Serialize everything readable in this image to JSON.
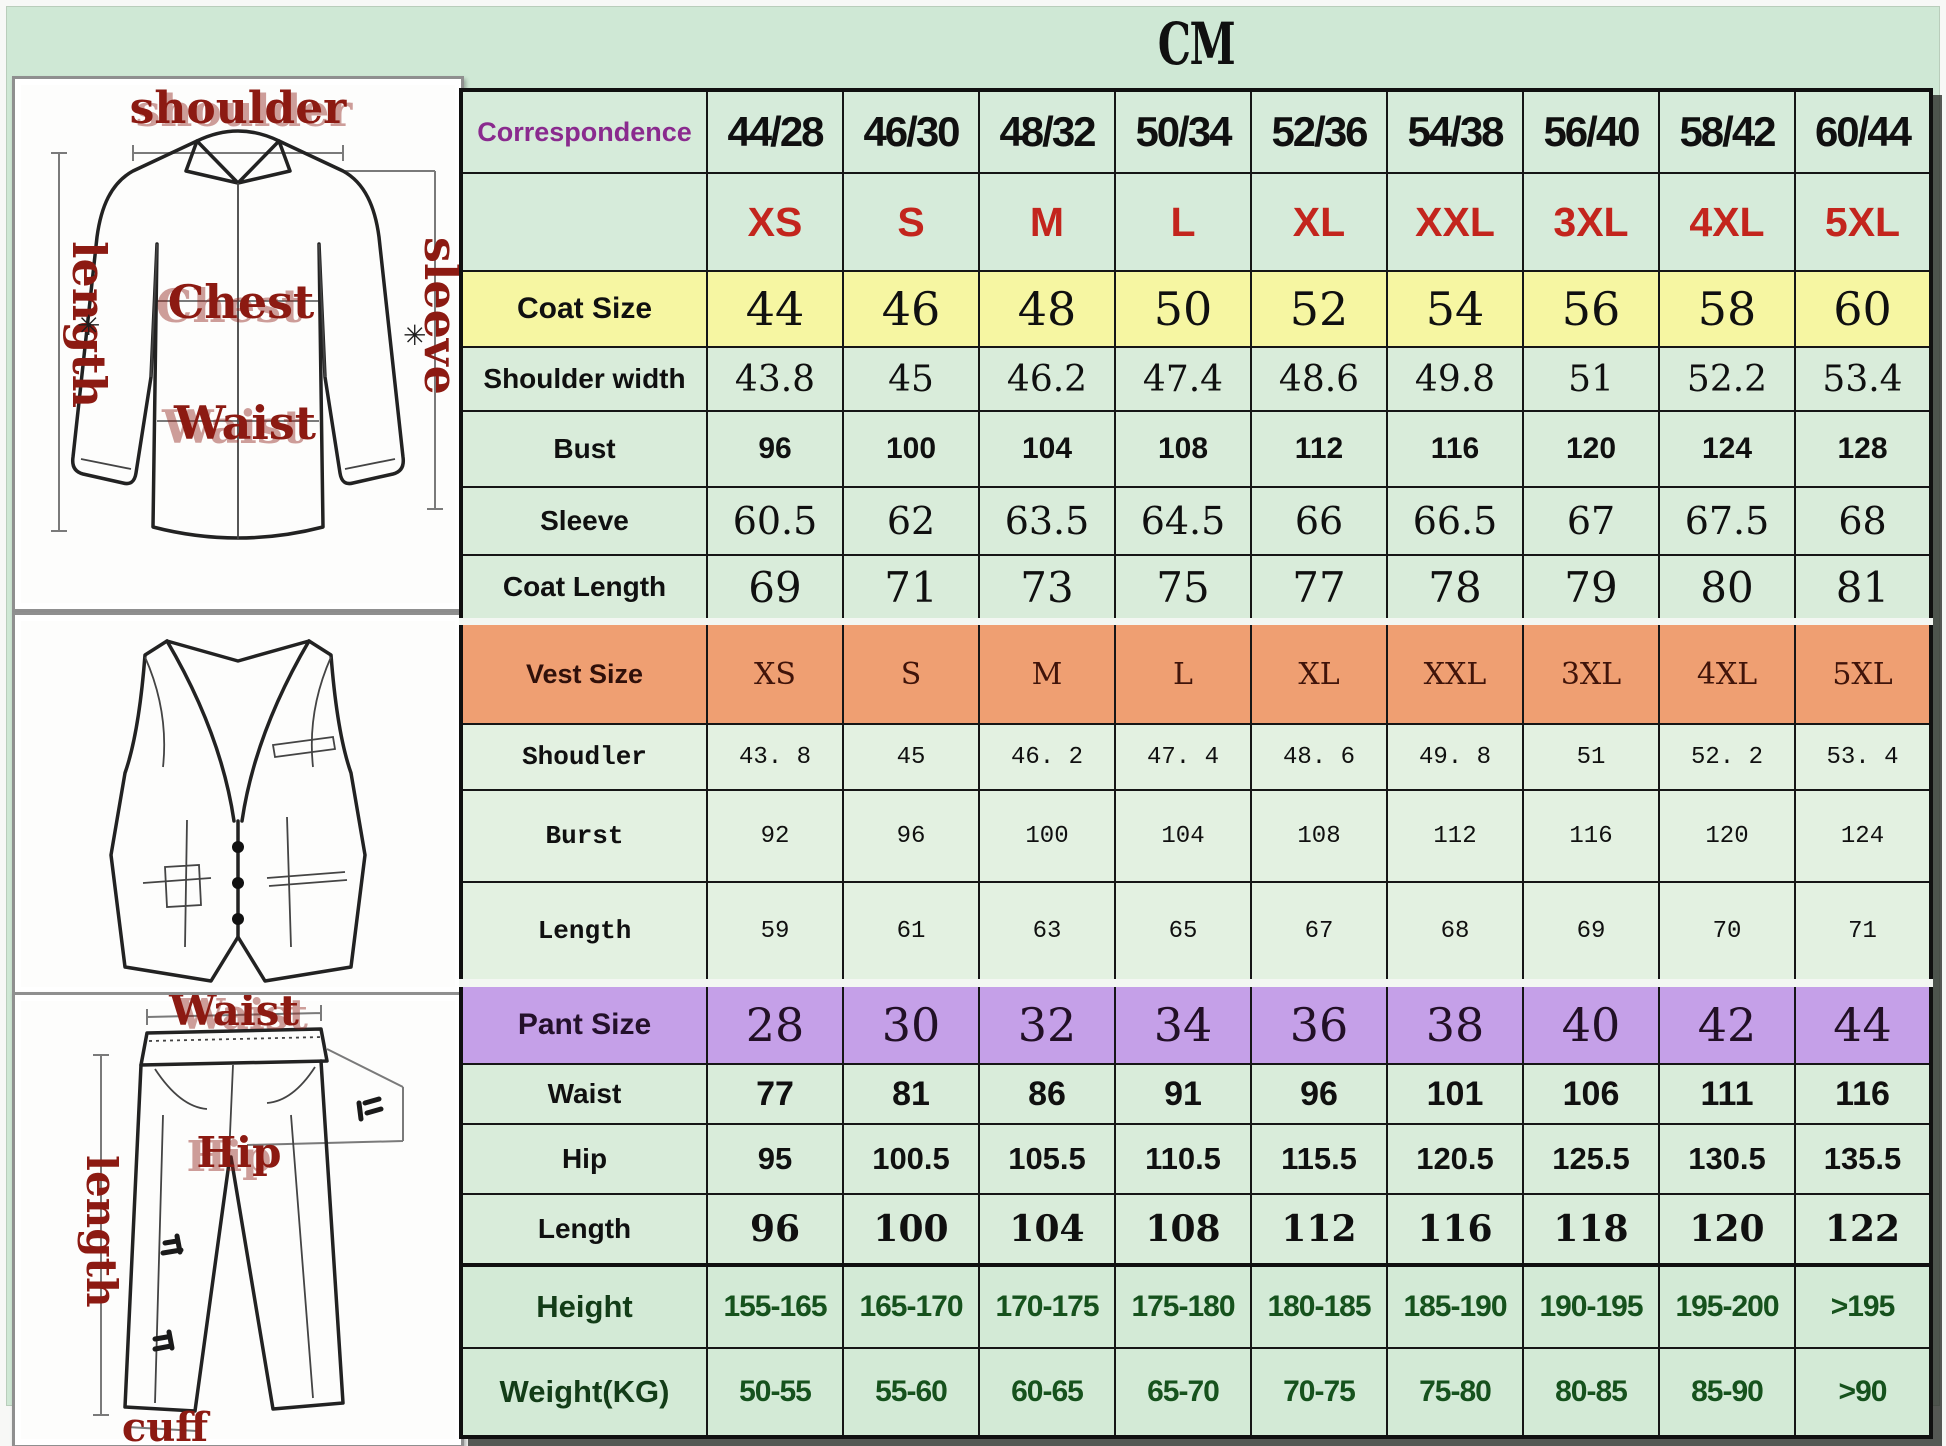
{
  "title": "CM",
  "table": {
    "rows": [
      {
        "variant": "header",
        "label": "Correspondence",
        "values": [
          "44/28",
          "46/30",
          "48/32",
          "50/34",
          "52/36",
          "54/38",
          "56/40",
          "58/42",
          "60/44"
        ]
      },
      {
        "variant": "sizes",
        "label": "",
        "values": [
          "XS",
          "S",
          "M",
          "L",
          "XL",
          "XXL",
          "3XL",
          "4XL",
          "5XL"
        ]
      },
      {
        "variant": "coat-size",
        "label": "Coat Size",
        "values": [
          "44",
          "46",
          "48",
          "50",
          "52",
          "54",
          "56",
          "58",
          "60"
        ]
      },
      {
        "variant": "shoulder",
        "label": "Shoulder width",
        "values": [
          "43.8",
          "45",
          "46.2",
          "47.4",
          "48.6",
          "49.8",
          "51",
          "52.2",
          "53.4"
        ]
      },
      {
        "variant": "bust",
        "label": "Bust",
        "values": [
          "96",
          "100",
          "104",
          "108",
          "112",
          "116",
          "120",
          "124",
          "128"
        ]
      },
      {
        "variant": "sleeve",
        "label": "Sleeve",
        "values": [
          "60.5",
          "62",
          "63.5",
          "64.5",
          "66",
          "66.5",
          "67",
          "67.5",
          "68"
        ]
      },
      {
        "variant": "coat-length",
        "label": "Coat Length",
        "values": [
          "69",
          "71",
          "73",
          "75",
          "77",
          "78",
          "79",
          "80",
          "81"
        ]
      },
      {
        "variant": "vest-size",
        "label": "Vest Size",
        "values": [
          "XS",
          "S",
          "M",
          "L",
          "XL",
          "XXL",
          "3XL",
          "4XL",
          "5XL"
        ]
      },
      {
        "variant": "vest-shoulder",
        "label": "Shoudler",
        "values": [
          "43. 8",
          "45",
          "46. 2",
          "47. 4",
          "48. 6",
          "49. 8",
          "51",
          "52. 2",
          "53. 4"
        ]
      },
      {
        "variant": "vest-bust",
        "label": "Burst",
        "values": [
          "92",
          "96",
          "100",
          "104",
          "108",
          "112",
          "116",
          "120",
          "124"
        ]
      },
      {
        "variant": "vest-length",
        "label": "Length",
        "values": [
          "59",
          "61",
          "63",
          "65",
          "67",
          "68",
          "69",
          "70",
          "71"
        ]
      },
      {
        "variant": "pant-size",
        "label": "Pant Size",
        "values": [
          "28",
          "30",
          "32",
          "34",
          "36",
          "38",
          "40",
          "42",
          "44"
        ]
      },
      {
        "variant": "waist",
        "label": "Waist",
        "values": [
          "77",
          "81",
          "86",
          "91",
          "96",
          "101",
          "106",
          "111",
          "116"
        ]
      },
      {
        "variant": "hip",
        "label": "Hip",
        "values": [
          "95",
          "100.5",
          "105.5",
          "110.5",
          "115.5",
          "120.5",
          "125.5",
          "130.5",
          "135.5"
        ]
      },
      {
        "variant": "pant-length",
        "label": "Length",
        "values": [
          "96",
          "100",
          "104",
          "108",
          "112",
          "116",
          "118",
          "120",
          "122"
        ]
      },
      {
        "variant": "height",
        "label": "Height",
        "values": [
          "155-165",
          "165-170",
          "170-175",
          "175-180",
          "180-185",
          "185-190",
          "190-195",
          "195-200",
          ">195"
        ]
      },
      {
        "variant": "weight",
        "label": "Weight(KG)",
        "values": [
          "50-55",
          "55-60",
          "60-65",
          "65-70",
          "70-75",
          "75-80",
          "80-85",
          "85-90",
          ">90"
        ]
      }
    ]
  },
  "illustrations": {
    "shirt": {
      "labels": {
        "shoulder": "shoulder",
        "length": "length",
        "sleeve": "sleeve",
        "chest": "Chest",
        "waist": "Waist"
      },
      "marks": [
        "✳",
        "✳"
      ]
    },
    "pants": {
      "labels": {
        "waist": "Waist",
        "length": "length",
        "hip": "Hip",
        "cuff": "cuff"
      }
    }
  },
  "colors": {
    "canvas_green": "#cfe8d5",
    "cell_green": "#d9ecda",
    "coat_band_yellow": "#f6f6a2",
    "vest_band_orange": "#ef9f72",
    "pant_band_purple": "#c5a0e8",
    "size_row_red": "#c3251d",
    "correspondence_purple": "#8a2a8e",
    "height_weight_green": "#16521d",
    "illustration_label_red": "#8c1a12"
  }
}
